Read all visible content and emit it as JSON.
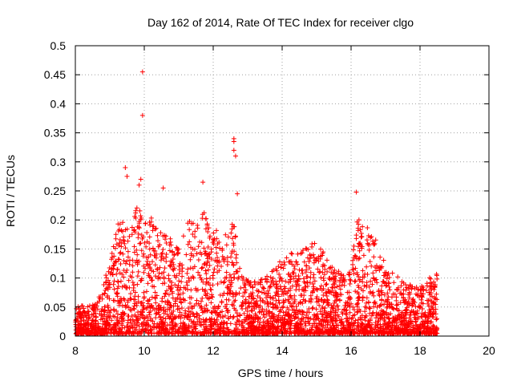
{
  "chart_data": {
    "type": "scatter",
    "title": "Day 162 of 2014, Rate Of TEC Index for receiver clgo",
    "xlabel": "GPS time / hours",
    "ylabel": "ROTI / TECUs",
    "xlim": [
      8,
      20
    ],
    "ylim": [
      0,
      0.5
    ],
    "grid": true,
    "x_ticks": [
      "8",
      "10",
      "12",
      "14",
      "16",
      "18",
      "20"
    ],
    "y_ticks": [
      "0",
      "0.05",
      "0.1",
      "0.15",
      "0.2",
      "0.25",
      "0.3",
      "0.35",
      "0.4",
      "0.45",
      "0.5"
    ],
    "marker": "+",
    "series_color": "#ff0000",
    "data_range_hours": [
      8.0,
      18.5
    ],
    "notable_points": [
      {
        "x": 9.95,
        "y": 0.455
      },
      {
        "x": 9.95,
        "y": 0.38
      },
      {
        "x": 9.45,
        "y": 0.29
      },
      {
        "x": 9.5,
        "y": 0.275
      },
      {
        "x": 12.6,
        "y": 0.34
      },
      {
        "x": 12.6,
        "y": 0.335
      },
      {
        "x": 12.6,
        "y": 0.32
      },
      {
        "x": 12.65,
        "y": 0.31
      },
      {
        "x": 11.7,
        "y": 0.265
      },
      {
        "x": 10.55,
        "y": 0.255
      },
      {
        "x": 16.15,
        "y": 0.248
      },
      {
        "x": 12.7,
        "y": 0.245
      },
      {
        "x": 9.9,
        "y": 0.27
      },
      {
        "x": 9.85,
        "y": 0.26
      }
    ],
    "envelope": [
      {
        "x": 8.0,
        "y": 0.045
      },
      {
        "x": 8.5,
        "y": 0.055
      },
      {
        "x": 8.8,
        "y": 0.08
      },
      {
        "x": 9.0,
        "y": 0.13
      },
      {
        "x": 9.2,
        "y": 0.19
      },
      {
        "x": 9.5,
        "y": 0.2
      },
      {
        "x": 9.8,
        "y": 0.22
      },
      {
        "x": 10.2,
        "y": 0.2
      },
      {
        "x": 10.6,
        "y": 0.17
      },
      {
        "x": 11.0,
        "y": 0.16
      },
      {
        "x": 11.3,
        "y": 0.2
      },
      {
        "x": 11.8,
        "y": 0.21
      },
      {
        "x": 12.2,
        "y": 0.17
      },
      {
        "x": 12.6,
        "y": 0.2
      },
      {
        "x": 12.8,
        "y": 0.1
      },
      {
        "x": 13.2,
        "y": 0.09
      },
      {
        "x": 13.6,
        "y": 0.1
      },
      {
        "x": 14.0,
        "y": 0.13
      },
      {
        "x": 14.5,
        "y": 0.15
      },
      {
        "x": 15.0,
        "y": 0.16
      },
      {
        "x": 15.4,
        "y": 0.12
      },
      {
        "x": 15.8,
        "y": 0.1
      },
      {
        "x": 16.2,
        "y": 0.2
      },
      {
        "x": 16.6,
        "y": 0.18
      },
      {
        "x": 17.0,
        "y": 0.12
      },
      {
        "x": 17.5,
        "y": 0.09
      },
      {
        "x": 18.0,
        "y": 0.08
      },
      {
        "x": 18.5,
        "y": 0.11
      }
    ]
  }
}
